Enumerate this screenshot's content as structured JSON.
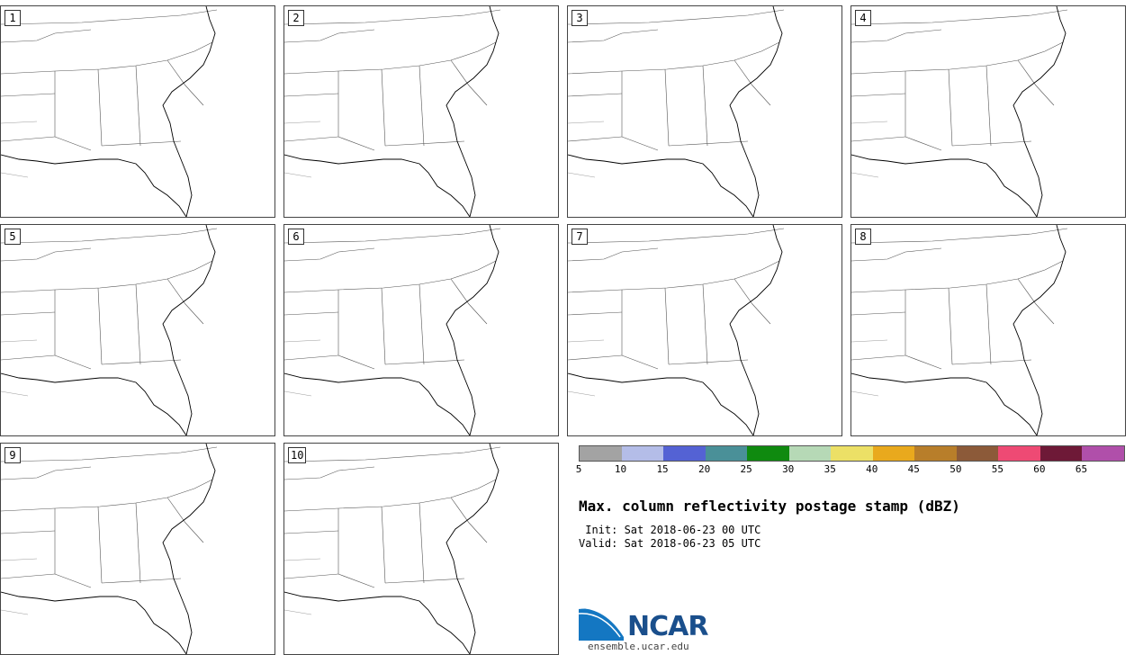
{
  "figure": {
    "title": "Max. column reflectivity postage stamp (dBZ)",
    "init": " Init: Sat 2018-06-23 00 UTC",
    "valid": "Valid: Sat 2018-06-23 05 UTC"
  },
  "panels": [
    {
      "label": "1"
    },
    {
      "label": "2"
    },
    {
      "label": "3"
    },
    {
      "label": "4"
    },
    {
      "label": "5"
    },
    {
      "label": "6"
    },
    {
      "label": "7"
    },
    {
      "label": "8"
    },
    {
      "label": "9"
    },
    {
      "label": "10"
    }
  ],
  "colorbar": {
    "ticks": [
      "5",
      "10",
      "15",
      "20",
      "25",
      "30",
      "35",
      "40",
      "45",
      "50",
      "55",
      "60",
      "65"
    ],
    "colors": [
      "#a3a3a3",
      "#b4bde8",
      "#5462d4",
      "#4a9098",
      "#0f8a0f",
      "#b6d9b6",
      "#ece066",
      "#e9a91d",
      "#b87e2a",
      "#8c5a39",
      "#ee4a74",
      "#6e1937",
      "#b04faa"
    ]
  },
  "logo": {
    "text": "NCAR",
    "url": "ensemble.ucar.edu"
  }
}
